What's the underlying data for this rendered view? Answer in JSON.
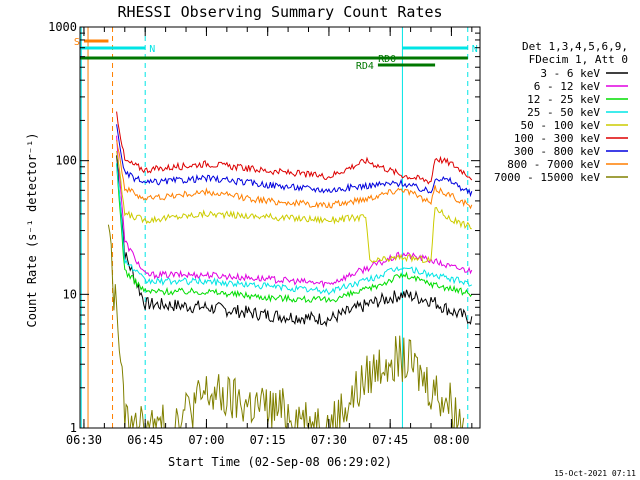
{
  "chart_data": {
    "type": "line",
    "title": "RHESSI Observing Summary Count Rates",
    "xlabel": "Start Time (02-Sep-08 06:29:02)",
    "ylabel": "Count Rate (s⁻¹ detector⁻¹)",
    "xlim": [
      "06:29:02",
      "08:07:00"
    ],
    "ylim": [
      1,
      1000
    ],
    "yscale": "log",
    "x_ticks": [
      "06:30",
      "06:45",
      "07:00",
      "07:15",
      "07:30",
      "07:45",
      "08:00"
    ],
    "y_ticks": [
      "1",
      "10",
      "100",
      "1000"
    ],
    "legend": {
      "placement": "right",
      "header": [
        "Det 1,3,4,5,6,9,",
        "FDecim 1, Att 0"
      ]
    },
    "series": [
      {
        "name": "3 - 6 keV",
        "color": "#000000",
        "x": [
          "06:38",
          "06:40",
          "06:45",
          "07:00",
          "07:15",
          "07:30",
          "07:40",
          "07:48",
          "07:55",
          "08:00",
          "08:05"
        ],
        "y": [
          110,
          20,
          8.5,
          8.0,
          7.0,
          6.5,
          8.5,
          10,
          9,
          7.5,
          6.5
        ]
      },
      {
        "name": "6 - 12 keV",
        "color": "#e000e0",
        "x": [
          "06:38",
          "06:40",
          "06:45",
          "07:00",
          "07:15",
          "07:30",
          "07:40",
          "07:48",
          "07:55",
          "08:00",
          "08:05"
        ],
        "y": [
          150,
          25,
          14,
          14,
          13,
          12,
          16,
          20,
          18,
          16,
          15
        ]
      },
      {
        "name": "12 - 25 keV",
        "color": "#00dd00",
        "x": [
          "06:38",
          "06:40",
          "06:45",
          "07:00",
          "07:15",
          "07:30",
          "07:40",
          "07:48",
          "07:55",
          "08:00",
          "08:05"
        ],
        "y": [
          90,
          15,
          10.5,
          10.5,
          9.5,
          9.0,
          11,
          14,
          12,
          11,
          10
        ]
      },
      {
        "name": "25 - 50 keV",
        "color": "#00e5e5",
        "x": [
          "06:38",
          "06:40",
          "06:45",
          "07:00",
          "07:15",
          "07:30",
          "07:40",
          "07:48",
          "07:55",
          "08:00",
          "08:05"
        ],
        "y": [
          100,
          18,
          12.5,
          12.5,
          11.5,
          10.5,
          13,
          16,
          14,
          13,
          12
        ]
      },
      {
        "name": "50 - 100 keV",
        "color": "#cccc00",
        "x": [
          "06:38",
          "06:40",
          "06:45",
          "07:00",
          "07:15",
          "07:30",
          "07:39",
          "07:40",
          "07:48",
          "07:55",
          "07:56",
          "08:00",
          "08:05"
        ],
        "y": [
          120,
          40,
          36,
          40,
          38,
          36,
          38,
          17.5,
          19,
          18,
          45,
          36,
          32
        ]
      },
      {
        "name": "100 - 300 keV",
        "color": "#dd0000",
        "x": [
          "06:38",
          "06:40",
          "06:45",
          "07:00",
          "07:15",
          "07:30",
          "07:39",
          "07:48",
          "07:55",
          "07:56",
          "08:00",
          "08:05"
        ],
        "y": [
          230,
          100,
          85,
          95,
          84,
          76,
          100,
          78,
          70,
          105,
          95,
          75
        ]
      },
      {
        "name": "300 - 800 keV",
        "color": "#0000dd",
        "x": [
          "06:38",
          "06:40",
          "06:45",
          "07:00",
          "07:15",
          "07:30",
          "07:39",
          "07:48",
          "07:55",
          "07:56",
          "08:00",
          "08:05"
        ],
        "y": [
          180,
          80,
          68,
          74,
          66,
          60,
          65,
          68,
          58,
          75,
          70,
          56
        ]
      },
      {
        "name": "800 - 7000 keV",
        "color": "#ff7f00",
        "x": [
          "06:38",
          "06:40",
          "06:45",
          "07:00",
          "07:15",
          "07:30",
          "07:39",
          "07:48",
          "07:55",
          "07:56",
          "08:00",
          "08:05"
        ],
        "y": [
          150,
          62,
          52,
          58,
          50,
          46,
          52,
          62,
          48,
          62,
          55,
          45
        ]
      },
      {
        "name": "7000 - 15000 keV",
        "color": "#808000",
        "x": [
          "06:36",
          "06:37",
          "06:38",
          "06:39",
          "06:40",
          "06:45",
          "06:50",
          "07:00",
          "07:10",
          "07:20",
          "07:30",
          "07:40",
          "07:45",
          "07:50",
          "07:55",
          "08:00",
          "08:03"
        ],
        "y": [
          40,
          12,
          8,
          3,
          1,
          1,
          1,
          1.8,
          1.5,
          1.3,
          1,
          2.5,
          3.5,
          3,
          2,
          1.5,
          1
        ]
      }
    ],
    "state_bars": [
      {
        "label": "S",
        "color": "#ff7f00",
        "start": "06:30",
        "end": "06:36"
      },
      {
        "label": "N",
        "color": "#00e5e5",
        "start": "06:29:02",
        "end": "06:45"
      },
      {
        "label": "N",
        "color": "#00e5e5",
        "start": "07:48",
        "end": "08:04"
      },
      {
        "label": "RD0",
        "color": "#007700",
        "start": "06:29:02",
        "end": "08:04"
      },
      {
        "label": "RD4",
        "color": "#007700",
        "start": "07:42",
        "end": "07:56"
      },
      {
        "label": "",
        "color": "#007700",
        "start": "07:59",
        "end": "08:04"
      }
    ],
    "vertical_markers": [
      {
        "time": "06:29:20",
        "color": "#00e5e5",
        "dashed": false
      },
      {
        "time": "06:31",
        "color": "#ff7f00",
        "dashed": false
      },
      {
        "time": "06:37",
        "color": "#ff7f00",
        "dashed": true
      },
      {
        "time": "06:45",
        "color": "#00e5e5",
        "dashed": true
      },
      {
        "time": "07:48",
        "color": "#00e5e5",
        "dashed": false
      },
      {
        "time": "08:04",
        "color": "#00e5e5",
        "dashed": true
      }
    ]
  },
  "footer_timestamp": "15-Oct-2021 07:11"
}
